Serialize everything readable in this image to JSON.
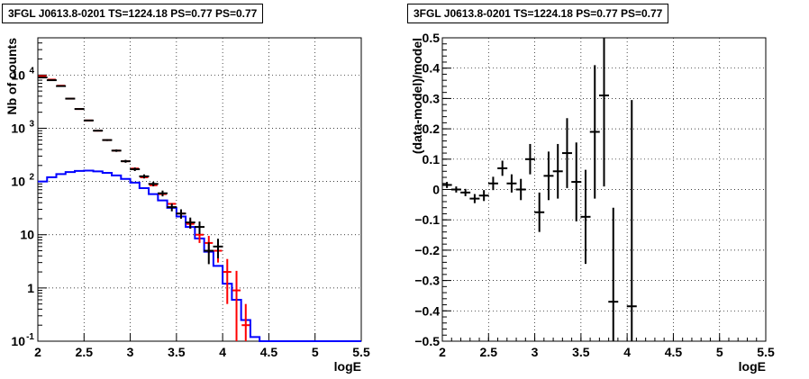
{
  "chart_data": [
    {
      "type": "histogram",
      "title": "3FGL J0613.8-0201 TS=1224.18 PS=0.77 PS=0.77",
      "xlabel": "logE",
      "ylabel": "Nb of counts",
      "xlim": [
        2,
        5.5
      ],
      "ylim": [
        0.1,
        50000
      ],
      "yscale": "log",
      "grid": true,
      "xticks": [
        "2",
        "2.5",
        "3",
        "3.5",
        "4",
        "4.5",
        "5",
        "5.5"
      ],
      "yticks": [
        {
          "value": 0.1,
          "label": "10",
          "exp": "-1"
        },
        {
          "value": 1,
          "label": "1",
          "exp": ""
        },
        {
          "value": 10,
          "label": "10",
          "exp": ""
        },
        {
          "value": 100,
          "label": "10",
          "exp": "2"
        },
        {
          "value": 1000,
          "label": "10",
          "exp": "3"
        },
        {
          "value": 10000,
          "label": "10",
          "exp": "4"
        }
      ],
      "series": [
        {
          "color": "#0000ff",
          "style": "step",
          "edges": [
            2.0,
            2.1,
            2.2,
            2.3,
            2.4,
            2.5,
            2.6,
            2.7,
            2.8,
            2.9,
            3.0,
            3.1,
            3.2,
            3.3,
            3.4,
            3.5,
            3.6,
            3.7,
            3.8,
            3.9,
            4.0,
            4.1,
            4.2,
            4.3,
            4.4,
            4.5,
            4.6,
            4.7,
            4.8,
            4.9,
            5.0,
            5.1,
            5.2,
            5.3,
            5.4,
            5.5
          ],
          "values": [
            100,
            120,
            138,
            150,
            158,
            160,
            155,
            145,
            130,
            112,
            95,
            75,
            58,
            44,
            32,
            22,
            14,
            8.5,
            4.8,
            2.6,
            1.2,
            0.6,
            0.25,
            0.12,
            0.1,
            0.1,
            0.1,
            0.1,
            0.1,
            0.1,
            0.1,
            0.1,
            0.1,
            0.1,
            0.1
          ]
        },
        {
          "color": "#ff0000",
          "style": "errorbar",
          "x": [
            2.05,
            2.15,
            2.25,
            2.35,
            2.45,
            2.55,
            2.65,
            2.75,
            2.85,
            2.95,
            3.05,
            3.15,
            3.25,
            3.35,
            3.45,
            3.55,
            3.65,
            3.75,
            3.85,
            3.95,
            4.05,
            4.15,
            4.25
          ],
          "y": [
            9500,
            8200,
            6300,
            3600,
            2300,
            1400,
            900,
            600,
            380,
            240,
            175,
            120,
            85,
            58,
            38,
            25,
            16,
            10,
            7,
            5,
            2,
            0.9,
            0.2
          ],
          "err": [
            0,
            0,
            0,
            0,
            0,
            0,
            0,
            0,
            0,
            0,
            0,
            0,
            0,
            0,
            0,
            0,
            3,
            3,
            2.5,
            2,
            1.5,
            1.2,
            0.3
          ]
        },
        {
          "color": "#000000",
          "style": "errorbar",
          "x": [
            2.05,
            2.15,
            2.25,
            2.35,
            2.45,
            2.55,
            2.65,
            2.75,
            2.85,
            2.95,
            3.05,
            3.15,
            3.25,
            3.35,
            3.45,
            3.55,
            3.65,
            3.75,
            3.85,
            3.95
          ],
          "y": [
            9000,
            8000,
            6200,
            3600,
            2300,
            1400,
            900,
            600,
            380,
            240,
            170,
            125,
            90,
            60,
            33,
            25,
            17,
            14,
            5,
            6
          ],
          "err": [
            90,
            85,
            75,
            60,
            48,
            37,
            30,
            24,
            20,
            15,
            13,
            11,
            9,
            7.5,
            5.5,
            5,
            4,
            3.7,
            2.2,
            2.4
          ]
        }
      ]
    },
    {
      "type": "errorbar",
      "title": "3FGL J0613.8-0201 TS=1224.18 PS=0.77 PS=0.77",
      "xlabel": "logE",
      "ylabel": "(data-model)/model",
      "xlim": [
        2,
        5.5
      ],
      "ylim": [
        -0.5,
        0.5
      ],
      "grid": true,
      "xticks": [
        "2",
        "2.5",
        "3",
        "3.5",
        "4",
        "4.5",
        "5",
        "5.5"
      ],
      "yticks": [
        "-0.5",
        "-0.4",
        "-0.3",
        "-0.2",
        "-0.1",
        "0",
        "0.1",
        "0.2",
        "0.3",
        "0.4",
        "0.5"
      ],
      "series": [
        {
          "color": "#000000",
          "x": [
            2.05,
            2.15,
            2.25,
            2.35,
            2.45,
            2.55,
            2.65,
            2.75,
            2.85,
            2.95,
            3.05,
            3.15,
            3.25,
            3.35,
            3.45,
            3.55,
            3.65,
            3.75,
            3.85,
            4.05
          ],
          "y": [
            0.015,
            0.0,
            -0.01,
            -0.03,
            -0.02,
            0.02,
            0.07,
            0.02,
            0.0,
            0.1,
            -0.075,
            0.045,
            0.06,
            0.12,
            0.025,
            -0.09,
            0.19,
            0.31,
            -0.37,
            -0.385
          ],
          "err": [
            0.01,
            0.01,
            0.012,
            0.015,
            0.018,
            0.022,
            0.025,
            0.03,
            0.035,
            0.05,
            0.065,
            0.08,
            0.09,
            0.115,
            0.13,
            0.155,
            0.22,
            0.3,
            0.31,
            0.68
          ]
        }
      ]
    }
  ]
}
